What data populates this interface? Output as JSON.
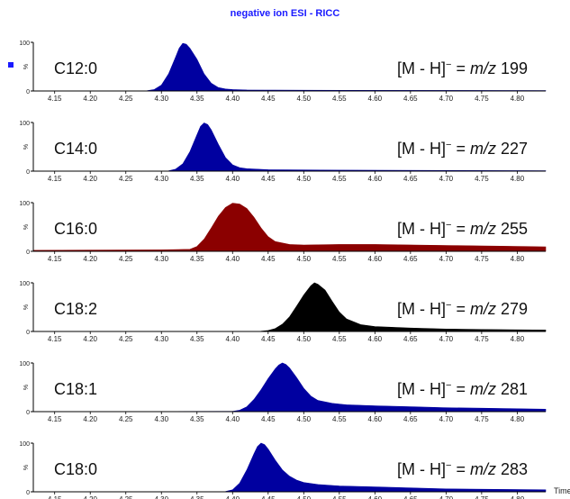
{
  "title": "negative ion ESI - RICC",
  "x_axis_label": "Time",
  "percent_label": "%",
  "chart_data": {
    "type": "area",
    "title": "negative ion ESI - RICC",
    "xlabel": "Time",
    "xlim": [
      4.12,
      4.84
    ],
    "ylim": [
      0,
      100
    ],
    "y_ticks": [
      "0",
      "100"
    ],
    "x_ticks": [
      "4.15",
      "4.20",
      "4.25",
      "4.30",
      "4.35",
      "4.40",
      "4.45",
      "4.50",
      "4.55",
      "4.60",
      "4.65",
      "4.70",
      "4.75",
      "4.80"
    ],
    "panels": [
      {
        "name": "C12:0",
        "ion_prefix": "[M - H]",
        "ion_sup": "−",
        "ion_eq": " = ",
        "ion_mz": "m/z",
        "ion_value": " 199",
        "color": "#0000a0",
        "x": [
          4.12,
          4.28,
          4.29,
          4.3,
          4.31,
          4.32,
          4.325,
          4.33,
          4.335,
          4.34,
          4.35,
          4.36,
          4.37,
          4.38,
          4.39,
          4.4,
          4.42,
          4.5,
          4.84
        ],
        "y": [
          0,
          0.5,
          3,
          12,
          35,
          70,
          88,
          98,
          96,
          88,
          65,
          35,
          16,
          7,
          4,
          3,
          2,
          1.5,
          1
        ]
      },
      {
        "name": "C14:0",
        "ion_prefix": "[M - H]",
        "ion_sup": "−",
        "ion_eq": " = ",
        "ion_mz": "m/z",
        "ion_value": " 227",
        "color": "#0000a0",
        "x": [
          4.12,
          4.31,
          4.32,
          4.33,
          4.34,
          4.35,
          4.355,
          4.36,
          4.365,
          4.37,
          4.38,
          4.39,
          4.4,
          4.41,
          4.42,
          4.45,
          4.55,
          4.84
        ],
        "y": [
          0,
          0.5,
          4,
          15,
          40,
          75,
          92,
          99,
          96,
          85,
          55,
          28,
          13,
          7,
          5,
          3,
          2,
          1
        ]
      },
      {
        "name": "C16:0",
        "ion_prefix": "[M - H]",
        "ion_sup": "−",
        "ion_eq": " = ",
        "ion_mz": "m/z",
        "ion_value": " 255",
        "color": "#8b0000",
        "x": [
          4.12,
          4.3,
          4.34,
          4.35,
          4.36,
          4.37,
          4.38,
          4.39,
          4.4,
          4.41,
          4.42,
          4.43,
          4.44,
          4.45,
          4.46,
          4.48,
          4.5,
          4.55,
          4.6,
          4.7,
          4.8,
          4.84
        ],
        "y": [
          2,
          3,
          4,
          10,
          25,
          48,
          72,
          90,
          99,
          97,
          88,
          70,
          48,
          30,
          20,
          14,
          13,
          14,
          14,
          12,
          10,
          9
        ]
      },
      {
        "name": "C18:2",
        "ion_prefix": "[M - H]",
        "ion_sup": "−",
        "ion_eq": " = ",
        "ion_mz": "m/z",
        "ion_value": " 279",
        "color": "#000000",
        "x": [
          4.12,
          4.44,
          4.45,
          4.46,
          4.47,
          4.48,
          4.49,
          4.5,
          4.51,
          4.515,
          4.52,
          4.53,
          4.54,
          4.55,
          4.56,
          4.58,
          4.6,
          4.65,
          4.7,
          4.75,
          4.84
        ],
        "y": [
          0,
          0.5,
          2,
          6,
          15,
          30,
          52,
          75,
          94,
          100,
          97,
          85,
          62,
          40,
          26,
          14,
          10,
          7,
          5,
          4,
          3
        ]
      },
      {
        "name": "C18:1",
        "ion_prefix": "[M - H]",
        "ion_sup": "−",
        "ion_eq": " = ",
        "ion_mz": "m/z",
        "ion_value": " 281",
        "color": "#0000a0",
        "x": [
          4.12,
          4.4,
          4.41,
          4.42,
          4.43,
          4.44,
          4.45,
          4.46,
          4.465,
          4.47,
          4.475,
          4.48,
          4.49,
          4.5,
          4.51,
          4.52,
          4.54,
          4.56,
          4.6,
          4.65,
          4.7,
          4.75,
          4.84
        ],
        "y": [
          0,
          0.5,
          3,
          10,
          25,
          45,
          68,
          88,
          96,
          100,
          97,
          90,
          70,
          48,
          32,
          23,
          17,
          14,
          12,
          10,
          8,
          7,
          5
        ]
      },
      {
        "name": "C18:0",
        "ion_prefix": "[M - H]",
        "ion_sup": "−",
        "ion_eq": " = ",
        "ion_mz": "m/z",
        "ion_value": " 283",
        "color": "#0000a0",
        "x": [
          4.12,
          4.39,
          4.4,
          4.41,
          4.42,
          4.43,
          4.435,
          4.44,
          4.445,
          4.45,
          4.46,
          4.47,
          4.48,
          4.49,
          4.5,
          4.52,
          4.55,
          4.6,
          4.65,
          4.7,
          4.84
        ],
        "y": [
          0,
          0.5,
          4,
          18,
          45,
          78,
          93,
          100,
          97,
          88,
          65,
          45,
          32,
          24,
          19,
          15,
          12,
          10,
          8,
          6,
          4
        ]
      }
    ]
  }
}
